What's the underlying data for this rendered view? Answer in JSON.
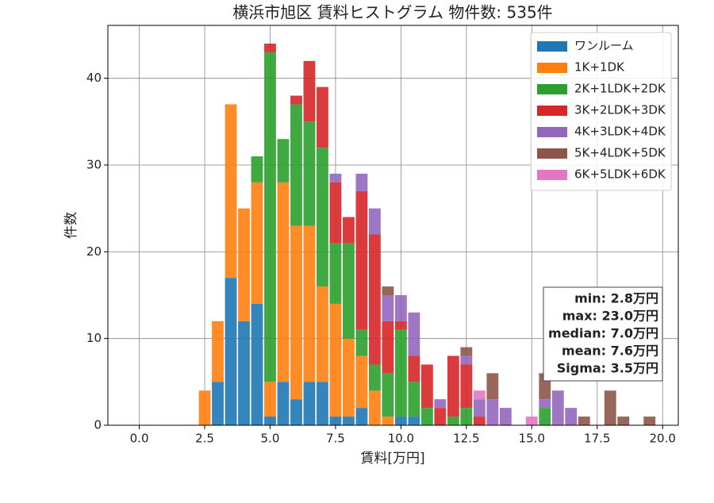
{
  "chart_data": {
    "type": "histogram",
    "title": "横浜市旭区 賃料ヒストグラム 物件数: 535件",
    "xlabel": "賃料[万円]",
    "ylabel": "件数",
    "bins": [
      2.25,
      2.75,
      3.25,
      3.75,
      4.25,
      4.75,
      5.25,
      5.75,
      6.25,
      6.75,
      7.25,
      7.75,
      8.25,
      8.75,
      9.25,
      9.75,
      10.25,
      10.75,
      11.25,
      11.75,
      12.25,
      12.75,
      13.25,
      13.75,
      14.25,
      14.75,
      15.25,
      15.75,
      16.25,
      16.75,
      17.25,
      17.75,
      18.25,
      18.75,
      19.25,
      19.75
    ],
    "series": [
      {
        "name": "ワンルーム",
        "color": "#1f77b4",
        "values": [
          0,
          5,
          17,
          12,
          14,
          1,
          5,
          3,
          5,
          5,
          1,
          1,
          2,
          0,
          0,
          1,
          1,
          0,
          0,
          0,
          0,
          0,
          0,
          0,
          0,
          0,
          0,
          0,
          0,
          0,
          0,
          0,
          0,
          0,
          0
        ]
      },
      {
        "name": "1K+1DK",
        "color": "#ff7f0e",
        "values": [
          4,
          7,
          20,
          13,
          14,
          4,
          23,
          20,
          18,
          11,
          13,
          9,
          6,
          4,
          1,
          0,
          0,
          0,
          0,
          0,
          0,
          0,
          0,
          0,
          0,
          0,
          0,
          0,
          0,
          0,
          0,
          0,
          0,
          0,
          0
        ]
      },
      {
        "name": "2K+1LDK+2DK",
        "color": "#2ca02c",
        "values": [
          0,
          0,
          0,
          0,
          3,
          38,
          5,
          14,
          12,
          16,
          7,
          11,
          3,
          3,
          5,
          10,
          4,
          2,
          0,
          1,
          2,
          0,
          0,
          0,
          0,
          0,
          2,
          0,
          0,
          0,
          0,
          0,
          0,
          0,
          0
        ]
      },
      {
        "name": "3K+2LDK+3DK",
        "color": "#d62728",
        "values": [
          0,
          0,
          0,
          0,
          0,
          1,
          0,
          1,
          7,
          7,
          7,
          3,
          16,
          15,
          6,
          1,
          3,
          5,
          2,
          7,
          5,
          1,
          0,
          0,
          0,
          0,
          0,
          0,
          0,
          0,
          0,
          0,
          0,
          0,
          0
        ]
      },
      {
        "name": "4K+3LDK+4DK",
        "color": "#9467bd",
        "values": [
          0,
          0,
          0,
          0,
          0,
          0,
          0,
          0,
          0,
          0,
          1,
          0,
          2,
          3,
          3,
          3,
          5,
          0,
          1,
          0,
          1,
          2,
          3,
          2,
          0,
          0,
          1,
          4,
          2,
          0,
          0,
          0,
          0,
          0,
          0
        ]
      },
      {
        "name": "5K+4LDK+5DK",
        "color": "#8c564b",
        "values": [
          0,
          0,
          0,
          0,
          0,
          0,
          0,
          0,
          0,
          0,
          0,
          0,
          0,
          0,
          1,
          0,
          0,
          0,
          0,
          0,
          1,
          0,
          3,
          0,
          0,
          0,
          3,
          0,
          0,
          1,
          0,
          4,
          1,
          0,
          1
        ]
      },
      {
        "name": "6K+5LDK+6DK",
        "color": "#e377c2",
        "values": [
          0,
          0,
          0,
          0,
          0,
          0,
          0,
          0,
          0,
          0,
          0,
          0,
          0,
          0,
          0,
          0,
          0,
          0,
          0,
          0,
          0,
          1,
          0,
          0,
          0,
          1,
          0,
          0,
          0,
          0,
          0,
          0,
          0,
          0,
          0
        ]
      }
    ],
    "xlim": [
      -1.2,
      20.6
    ],
    "ylim": [
      0,
      46.1
    ],
    "xticks": [
      {
        "value": 0,
        "label": "0.0"
      },
      {
        "value": 2.5,
        "label": "2.5"
      },
      {
        "value": 5,
        "label": "5.0"
      },
      {
        "value": 7.5,
        "label": "7.5"
      },
      {
        "value": 10,
        "label": "10.0"
      },
      {
        "value": 12.5,
        "label": "12.5"
      },
      {
        "value": 15,
        "label": "15.0"
      },
      {
        "value": 17.5,
        "label": "17.5"
      },
      {
        "value": 20,
        "label": "20.0"
      }
    ],
    "yticks": [
      0,
      10,
      20,
      30,
      40
    ],
    "grid": true,
    "legend": "upper right",
    "annotation": [
      "min: 2.8万円",
      "max: 23.0万円",
      "median: 7.0万円",
      "mean: 7.6万円",
      "Sigma: 3.5万円"
    ]
  }
}
